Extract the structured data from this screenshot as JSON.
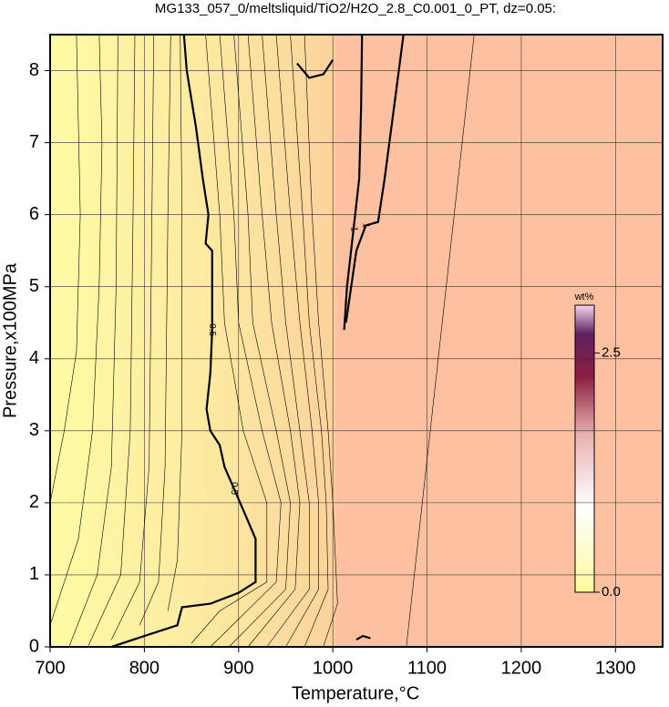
{
  "chart_data": {
    "type": "contour",
    "title": "MG133_057_0/meltsliquid/TiO2/H2O_2.8_C0.001_0_PT, dz=0.05:",
    "x_label": "Temperature,°C",
    "y_label": "Pressure,x100MPa",
    "xlim": [
      700,
      1350
    ],
    "ylim": [
      0,
      8.5
    ],
    "xticks": [
      700,
      800,
      900,
      1000,
      1100,
      1200,
      1300
    ],
    "yticks": [
      0,
      1,
      2,
      3,
      4,
      5,
      6,
      7,
      8
    ],
    "grid": true,
    "colorbar_label": "wt%",
    "clim": [
      0,
      3.0
    ],
    "colorbar_ticks": [
      {
        "value": 0,
        "label": "0.0"
      },
      {
        "value": 2.5,
        "label": "2.5"
      }
    ],
    "contours": [
      {
        "level": 0.1,
        "x": [
          700,
          715,
          728,
          732,
          728
        ],
        "y": [
          2.0,
          3.0,
          4.1,
          6.0,
          8.5
        ]
      },
      {
        "level": 0.15,
        "x": [
          700,
          730,
          745,
          752,
          755,
          752
        ],
        "y": [
          0.3,
          1.5,
          3.0,
          5.0,
          7.0,
          8.5
        ]
      },
      {
        "level": 0.2,
        "x": [
          720,
          750,
          765,
          770,
          772
        ],
        "y": [
          0,
          1.0,
          2.5,
          5.0,
          8.5
        ]
      },
      {
        "level": 0.25,
        "x": [
          740,
          775,
          785,
          788,
          790
        ],
        "y": [
          0,
          1.0,
          3.0,
          6.0,
          8.5
        ]
      },
      {
        "level": 0.3,
        "x": [
          765,
          795,
          805,
          808,
          810
        ],
        "y": [
          0.1,
          0.9,
          2.5,
          6.0,
          8.5
        ]
      },
      {
        "level": 0.35,
        "x": [
          795,
          815,
          822,
          825,
          828
        ],
        "y": [
          0.3,
          0.9,
          2.5,
          6.0,
          8.5
        ]
      },
      {
        "level": 0.4,
        "x": [
          825,
          835,
          840,
          840,
          838
        ],
        "y": [
          0.5,
          1.2,
          3.0,
          6.0,
          8.5
        ]
      },
      {
        "level": 0.5,
        "x": [
          765,
          800,
          835,
          840,
          870,
          900,
          918,
          918,
          905,
          895,
          885,
          880,
          870,
          866,
          870,
          872,
          872,
          865,
          868,
          862,
          855,
          845,
          842
        ],
        "y": [
          0,
          0.15,
          0.3,
          0.55,
          0.6,
          0.75,
          0.9,
          1.5,
          1.9,
          2.2,
          2.5,
          2.8,
          3.0,
          3.3,
          3.8,
          4.4,
          5.5,
          5.6,
          6.0,
          6.5,
          7.2,
          8.0,
          8.5
        ]
      },
      {
        "level": 0.55,
        "x": [
          850,
          880,
          930,
          930,
          905,
          885,
          880,
          865
        ],
        "y": [
          0.05,
          0.5,
          0.9,
          2.0,
          3.0,
          4.5,
          6.0,
          8.5
        ]
      },
      {
        "level": 0.6,
        "x": [
          870,
          940,
          945,
          925,
          900,
          895,
          880
        ],
        "y": [
          0,
          0.9,
          2.0,
          3.0,
          4.5,
          6.0,
          8.5
        ]
      },
      {
        "level": 0.65,
        "x": [
          890,
          950,
          955,
          940,
          915,
          910,
          895
        ],
        "y": [
          0,
          0.8,
          2.0,
          3.0,
          4.5,
          6.0,
          8.5
        ]
      },
      {
        "level": 0.7,
        "x": [
          910,
          960,
          965,
          955,
          935,
          925,
          910
        ],
        "y": [
          0,
          0.8,
          2.0,
          3.0,
          4.5,
          6.0,
          8.5
        ]
      },
      {
        "level": 0.75,
        "x": [
          930,
          975,
          975,
          965,
          950,
          940,
          925
        ],
        "y": [
          0,
          0.8,
          2.0,
          3.0,
          4.5,
          6.0,
          8.5
        ]
      },
      {
        "level": 0.8,
        "x": [
          950,
          985,
          985,
          978,
          965,
          955,
          940
        ],
        "y": [
          0,
          0.8,
          2.0,
          3.0,
          4.5,
          6.0,
          8.5
        ]
      },
      {
        "level": 0.85,
        "x": [
          970,
          995,
          993,
          988,
          975,
          968,
          955
        ],
        "y": [
          0,
          0.8,
          2.0,
          3.0,
          4.5,
          6.0,
          8.5
        ]
      },
      {
        "level": 0.9,
        "x": [
          990,
          1005,
          1000,
          995,
          985,
          978,
          970
        ],
        "y": [
          0,
          0.6,
          2.0,
          3.0,
          4.5,
          6.0,
          8.5
        ]
      },
      {
        "level": 1,
        "x": [
          1012,
          1015,
          1022,
          1028,
          1030,
          1031
        ],
        "y": [
          4.4,
          5.0,
          5.8,
          6.5,
          7.5,
          8.5
        ]
      },
      {
        "level": 1,
        "x": [
          1014,
          1025,
          1035,
          1048,
          1055,
          1065,
          1075
        ],
        "y": [
          4.5,
          5.5,
          5.85,
          5.9,
          6.5,
          7.5,
          8.5
        ]
      },
      {
        "level": 1,
        "x": [
          962,
          975,
          990,
          1000
        ],
        "y": [
          8.1,
          7.9,
          7.95,
          8.15
        ]
      },
      {
        "level": 1,
        "x": [
          1025,
          1032,
          1040
        ],
        "y": [
          0.1,
          0.15,
          0.12
        ]
      },
      {
        "level": 1.05,
        "x": [
          1078,
          1150
        ],
        "y": [
          0,
          8.5
        ]
      }
    ]
  }
}
